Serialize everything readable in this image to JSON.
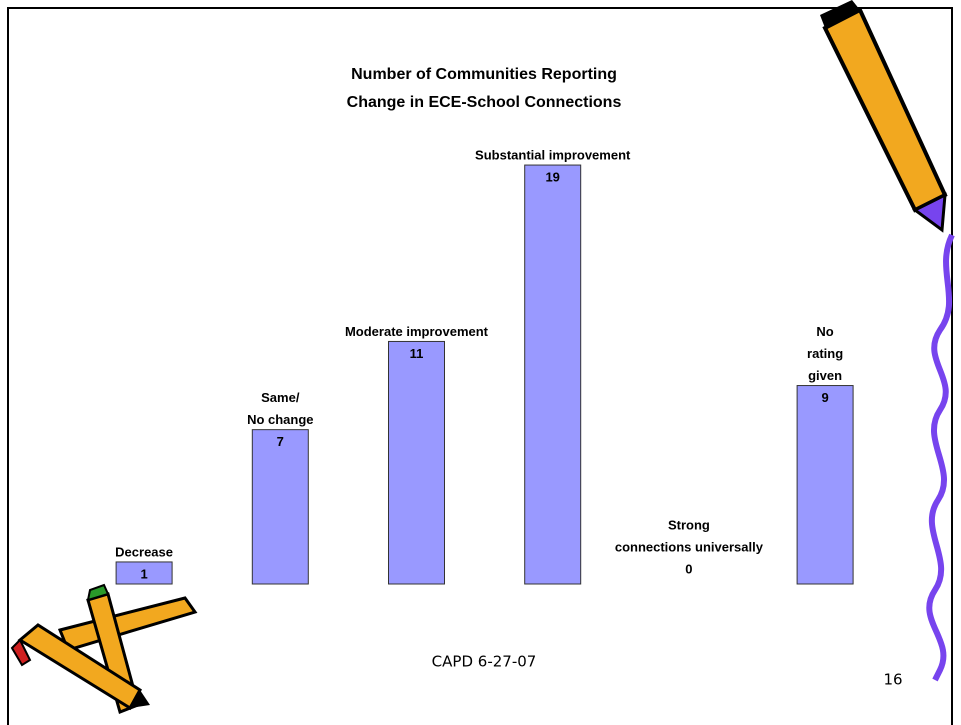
{
  "chart_data": {
    "type": "bar",
    "title": [
      "Number of Communities Reporting",
      "Change in ECE-School Connections"
    ],
    "categories": [
      [
        "Decrease"
      ],
      [
        "Same/",
        "No change"
      ],
      [
        "Moderate improvement"
      ],
      [
        "Substantial improvement"
      ],
      [
        "Strong",
        "connections universally"
      ],
      [
        "No",
        "rating",
        "given"
      ]
    ],
    "values": [
      1,
      7,
      11,
      19,
      0,
      9
    ],
    "color": "#9999ff"
  },
  "footer": {
    "text": "CAPD 6-27-07",
    "page_number": "16"
  }
}
